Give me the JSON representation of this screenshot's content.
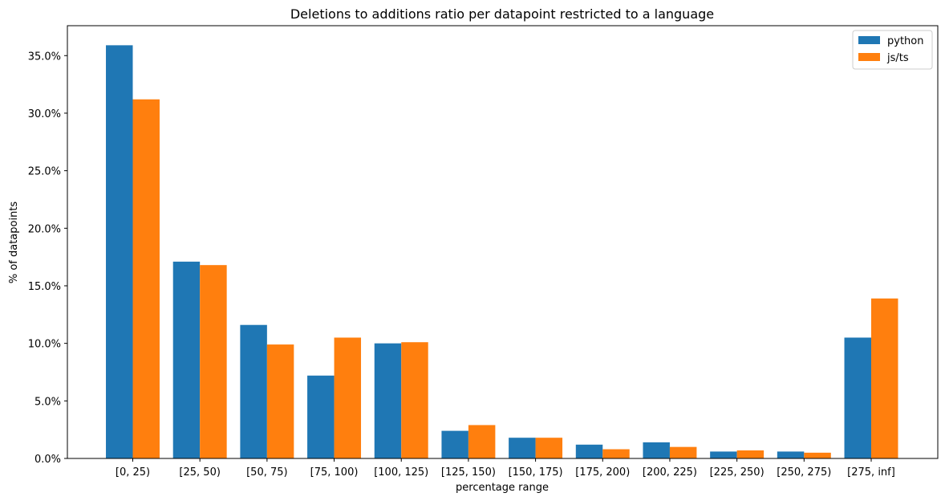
{
  "chart_data": {
    "type": "bar",
    "title": "Deletions to additions ratio per datapoint restricted to a language",
    "xlabel": "percentage range",
    "ylabel": "% of datapoints",
    "categories": [
      "[0, 25)",
      "[25, 50)",
      "[50, 75)",
      "[75, 100)",
      "[100, 125)",
      "[125, 150)",
      "[150, 175)",
      "[175, 200)",
      "[200, 225)",
      "[225, 250)",
      "[250, 275)",
      "[275, inf]"
    ],
    "series": [
      {
        "name": "python",
        "color": "#1f77b4",
        "values": [
          35.9,
          17.1,
          11.6,
          7.2,
          10.0,
          2.4,
          1.8,
          1.2,
          1.4,
          0.6,
          0.6,
          10.5
        ]
      },
      {
        "name": "js/ts",
        "color": "#ff7f0e",
        "values": [
          31.2,
          16.8,
          9.9,
          10.5,
          10.1,
          2.9,
          1.8,
          0.8,
          1.0,
          0.7,
          0.5,
          13.9
        ]
      }
    ],
    "ylim": [
      0,
      37.6
    ],
    "yticks": [
      "0.0%",
      "5.0%",
      "10.0%",
      "15.0%",
      "20.0%",
      "25.0%",
      "30.0%",
      "35.0%"
    ],
    "ytick_values": [
      0,
      5,
      10,
      15,
      20,
      25,
      30,
      35
    ],
    "legend_position": "top-right",
    "grid": false
  }
}
